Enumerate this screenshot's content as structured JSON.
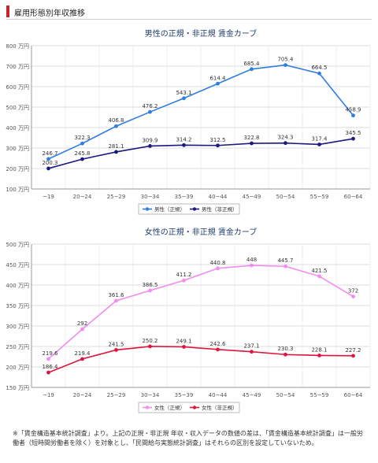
{
  "header": {
    "title": "雇用形態別年収推移"
  },
  "chart_data": [
    {
      "type": "line",
      "title": "男性の正規・非正規 賃金カーブ",
      "categories": [
        "~19",
        "20~24",
        "25~29",
        "30~34",
        "35~39",
        "40~44",
        "45~49",
        "50~54",
        "55~59",
        "60~64"
      ],
      "y_ticks": [
        "100 万円",
        "200 万円",
        "300 万円",
        "400 万円",
        "500 万円",
        "600 万円",
        "700 万円",
        "800 万円"
      ],
      "ylim": [
        100,
        800
      ],
      "y_step": 100,
      "grid": true,
      "legend_position": "bottom",
      "series": [
        {
          "name": "男性（正規）",
          "color": "#2f7de1",
          "values": [
            246.7,
            322.3,
            406.8,
            476.2,
            543.1,
            614.4,
            685.4,
            705.4,
            664.5,
            458.9
          ],
          "labels": [
            "246.7",
            "322.3",
            "406.8",
            "476.2",
            "543.1",
            "614.4",
            "685.4",
            "705.4",
            "664.5",
            "458.9"
          ]
        },
        {
          "name": "男性（非正規）",
          "color": "#1a1a80",
          "values": [
            200.3,
            245.8,
            281.1,
            309.9,
            314.2,
            312.5,
            322.8,
            324.3,
            317.4,
            345.5
          ],
          "labels": [
            "200.3",
            "245.8",
            "281.1",
            "309.9",
            "314.2",
            "312.5",
            "322.8",
            "324.3",
            "317.4",
            "345.5"
          ]
        }
      ]
    },
    {
      "type": "line",
      "title": "女性の正規・非正規 賃金カーブ",
      "categories": [
        "~19",
        "20~24",
        "25~29",
        "30~34",
        "35~39",
        "40~44",
        "45~49",
        "50~54",
        "55~59",
        "60~64"
      ],
      "y_ticks": [
        "150 万円",
        "200 万円",
        "250 万円",
        "300 万円",
        "350 万円",
        "400 万円",
        "450 万円",
        "500 万円"
      ],
      "ylim": [
        150,
        500
      ],
      "y_step": 50,
      "grid": true,
      "legend_position": "bottom",
      "series": [
        {
          "name": "女性（正規）",
          "color": "#f28cf0",
          "values": [
            219.6,
            292,
            361.6,
            386.5,
            411.2,
            440.8,
            448,
            445.7,
            421.5,
            372
          ],
          "labels": [
            "219.6",
            "292",
            "361.6",
            "386.5",
            "411.2",
            "440.8",
            "448",
            "445.7",
            "421.5",
            "372"
          ]
        },
        {
          "name": "女性（非正規）",
          "color": "#e0143c",
          "values": [
            186.4,
            219.4,
            241.5,
            250.2,
            249.1,
            242.6,
            237.1,
            230.3,
            228.1,
            227.2
          ],
          "labels": [
            "186.4",
            "219.4",
            "241.5",
            "250.2",
            "249.1",
            "242.6",
            "237.1",
            "230.3",
            "228.1",
            "227.2"
          ]
        }
      ]
    }
  ],
  "note": "※「賃金構造基本統計調査」より。上記の正規・非正規 年収・収入データの数値の差は、「賃金構造基本統計調査」は一般労働者（短時間労働者を除く）を対象とし、「民間給与実態統計調査」はそれらの区別を設定していないため。"
}
